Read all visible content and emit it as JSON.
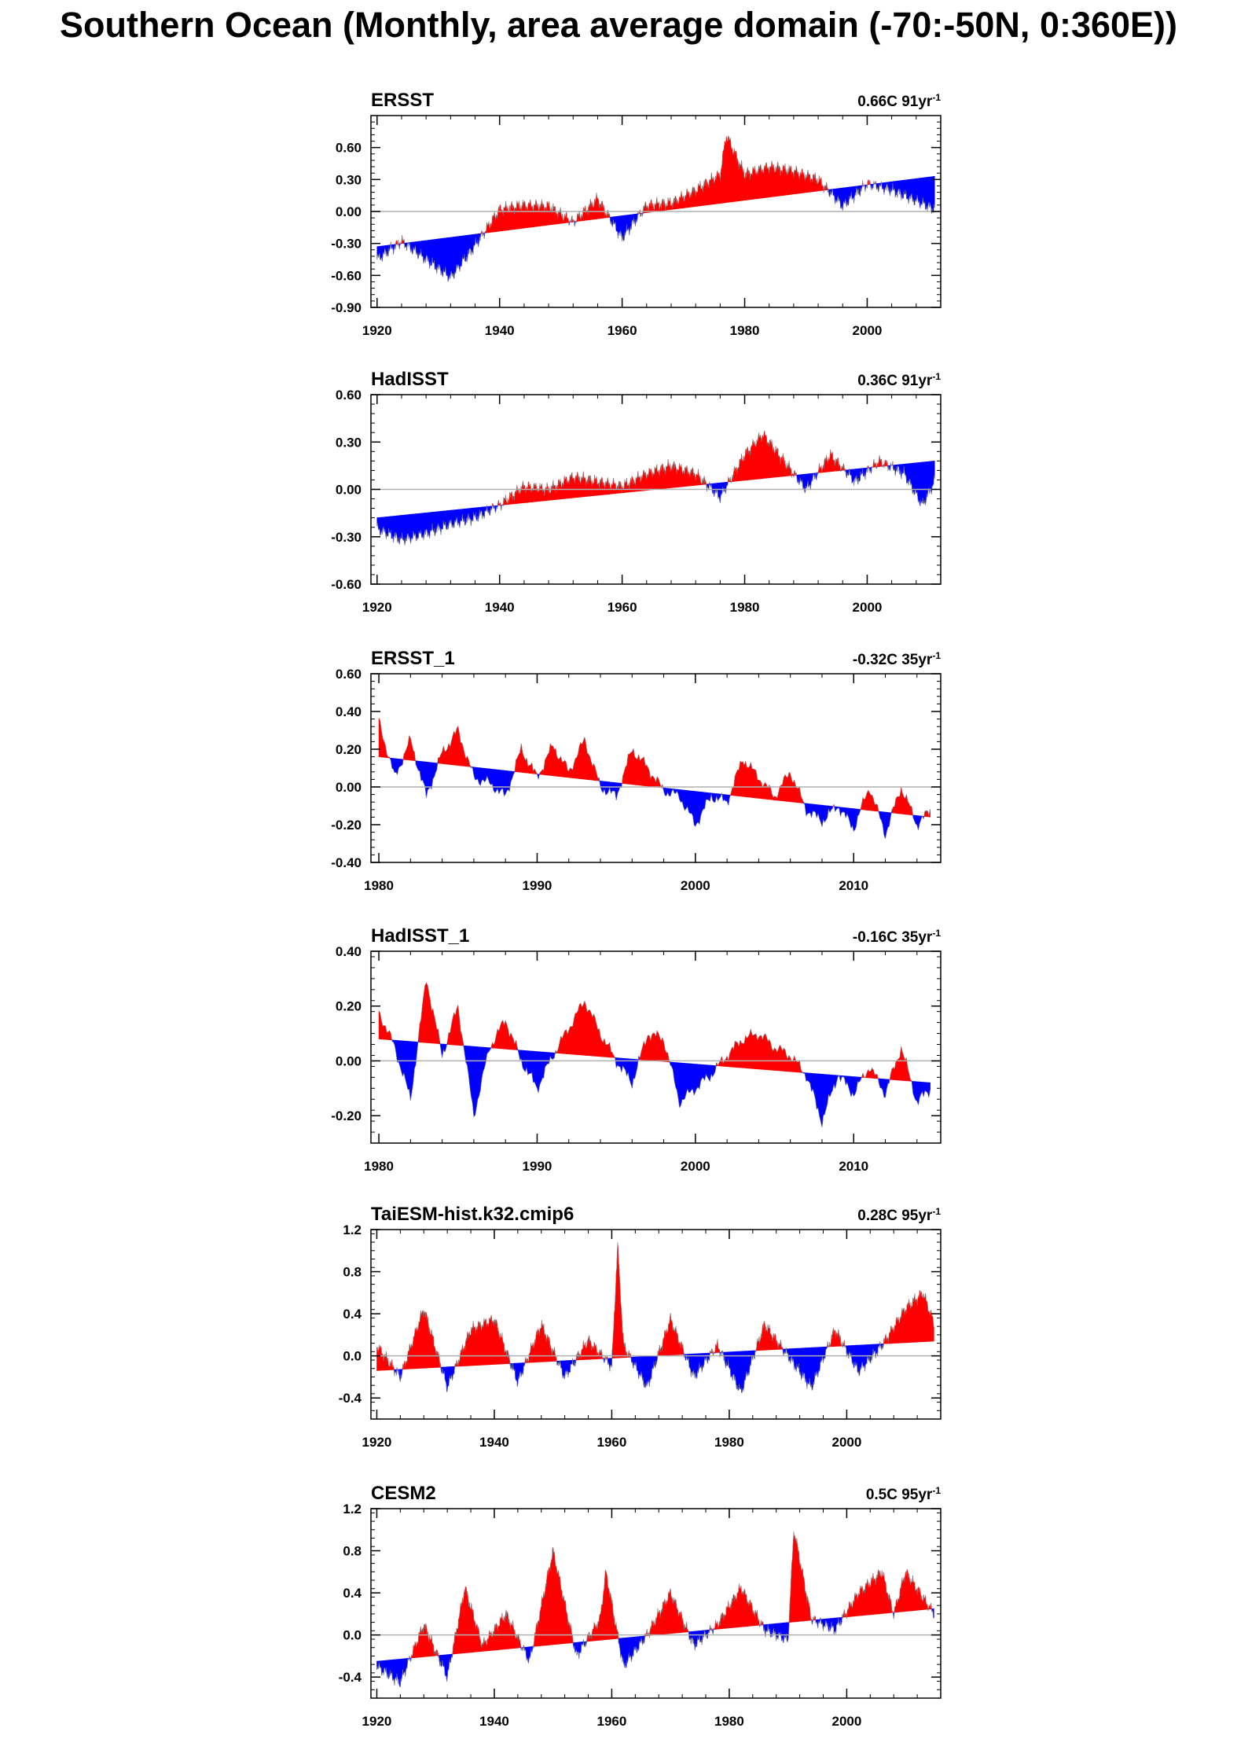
{
  "page_title": "Southern Ocean (Monthly, area average domain (-70:-50N, 0:360E))",
  "colors": {
    "positive": "#ff0000",
    "negative": "#0000ff",
    "zero_line": "#b0b0b0",
    "frame": "#000000"
  },
  "chart_data": [
    {
      "type": "area",
      "title": "ERSST",
      "right_label": "0.66C 91yr",
      "right_label_sup": "-1",
      "xlabel": "",
      "ylabel": "",
      "x_start": 1920,
      "x_end": 2011,
      "xlim": [
        1919,
        2012
      ],
      "ylim": [
        -0.9,
        0.9
      ],
      "yticks": [
        0.6,
        0.3,
        0.0,
        -0.3,
        -0.6,
        -0.9
      ],
      "ytick_labels": [
        "0.60",
        "0.30",
        "0.00",
        "-0.30",
        "-0.60",
        "-0.90"
      ],
      "xticks": [
        1920,
        1940,
        1960,
        1980,
        2000
      ],
      "trend": {
        "start": -0.33,
        "end": 0.33
      },
      "series_x": [
        1920,
        1924,
        1928,
        1932,
        1936,
        1940,
        1944,
        1948,
        1952,
        1956,
        1960,
        1964,
        1968,
        1972,
        1976,
        1977,
        1980,
        1984,
        1988,
        1992,
        1996,
        2000,
        2004,
        2008,
        2011
      ],
      "series_y": [
        -0.45,
        -0.28,
        -0.45,
        -0.62,
        -0.32,
        0.02,
        0.06,
        0.05,
        -0.1,
        0.12,
        -0.25,
        0.06,
        0.08,
        0.2,
        0.35,
        0.72,
        0.35,
        0.42,
        0.38,
        0.3,
        0.05,
        0.26,
        0.2,
        0.1,
        0.02
      ],
      "grid": false
    },
    {
      "type": "area",
      "title": "HadISST",
      "right_label": "0.36C 91yr",
      "right_label_sup": "-1",
      "xlabel": "",
      "ylabel": "",
      "x_start": 1920,
      "x_end": 2011,
      "xlim": [
        1919,
        2012
      ],
      "ylim": [
        -0.6,
        0.6
      ],
      "yticks": [
        0.6,
        0.3,
        0.0,
        -0.3,
        -0.6
      ],
      "ytick_labels": [
        "0.60",
        "0.30",
        "0.00",
        "-0.30",
        "-0.60"
      ],
      "xticks": [
        1920,
        1940,
        1960,
        1980,
        2000
      ],
      "trend": {
        "start": -0.18,
        "end": 0.18
      },
      "series_x": [
        1920,
        1924,
        1928,
        1932,
        1936,
        1940,
        1944,
        1948,
        1952,
        1956,
        1960,
        1964,
        1968,
        1972,
        1976,
        1980,
        1983,
        1986,
        1990,
        1994,
        1998,
        2002,
        2006,
        2009,
        2011
      ],
      "series_y": [
        -0.25,
        -0.32,
        -0.28,
        -0.22,
        -0.18,
        -0.1,
        0.02,
        0.0,
        0.08,
        0.05,
        0.02,
        0.1,
        0.15,
        0.1,
        -0.05,
        0.22,
        0.35,
        0.2,
        0.0,
        0.22,
        0.05,
        0.18,
        0.1,
        -0.1,
        0.05
      ],
      "grid": false
    },
    {
      "type": "area",
      "title": "ERSST_1",
      "right_label": "-0.32C 35yr",
      "right_label_sup": "-1",
      "xlabel": "",
      "ylabel": "",
      "x_start": 1980,
      "x_end": 2014.9,
      "xlim": [
        1979.5,
        2015.5
      ],
      "ylim": [
        -0.4,
        0.6
      ],
      "yticks": [
        0.6,
        0.4,
        0.2,
        0.0,
        -0.2,
        -0.4
      ],
      "ytick_labels": [
        "0.60",
        "0.40",
        "0.20",
        "0.00",
        "-0.20",
        "-0.40"
      ],
      "xticks": [
        1980,
        1990,
        2000,
        2010
      ],
      "trend": {
        "start": 0.16,
        "end": -0.16
      },
      "series_x": [
        1980,
        1981,
        1982,
        1983,
        1984,
        1985,
        1986,
        1987,
        1988,
        1989,
        1990,
        1991,
        1992,
        1993,
        1994,
        1995,
        1996,
        1997,
        1998,
        1999,
        2000,
        2001,
        2002,
        2003,
        2004,
        2005,
        2006,
        2007,
        2008,
        2009,
        2010,
        2011,
        2012,
        2013,
        2014,
        2014.9
      ],
      "series_y": [
        0.35,
        0.05,
        0.25,
        -0.05,
        0.18,
        0.3,
        0.05,
        0.02,
        -0.05,
        0.2,
        0.05,
        0.22,
        0.08,
        0.25,
        0.0,
        -0.05,
        0.2,
        0.1,
        -0.02,
        -0.05,
        -0.2,
        -0.05,
        -0.08,
        0.15,
        0.05,
        -0.05,
        0.08,
        -0.12,
        -0.18,
        -0.1,
        -0.22,
        0.0,
        -0.25,
        0.0,
        -0.2,
        -0.12
      ],
      "grid": false
    },
    {
      "type": "area",
      "title": "HadISST_1",
      "right_label": "-0.16C 35yr",
      "right_label_sup": "-1",
      "xlabel": "",
      "ylabel": "",
      "x_start": 1980,
      "x_end": 2014.9,
      "xlim": [
        1979.5,
        2015.5
      ],
      "ylim": [
        -0.3,
        0.4
      ],
      "yticks": [
        0.4,
        0.2,
        0.0,
        -0.2
      ],
      "ytick_labels": [
        "0.40",
        "0.20",
        "0.00",
        "-0.20"
      ],
      "xticks": [
        1980,
        1990,
        2000,
        2010
      ],
      "trend": {
        "start": 0.08,
        "end": -0.08
      },
      "series_x": [
        1980,
        1981,
        1982,
        1983,
        1984,
        1985,
        1986,
        1987,
        1988,
        1989,
        1990,
        1991,
        1992,
        1993,
        1994,
        1995,
        1996,
        1997,
        1998,
        1999,
        2000,
        2001,
        2002,
        2003,
        2004,
        2005,
        2006,
        2007,
        2008,
        2009,
        2010,
        2011,
        2012,
        2013,
        2014,
        2014.9
      ],
      "series_y": [
        0.18,
        0.05,
        -0.14,
        0.3,
        0.02,
        0.2,
        -0.2,
        0.05,
        0.15,
        0.0,
        -0.1,
        0.02,
        0.12,
        0.22,
        0.1,
        0.0,
        -0.08,
        0.1,
        0.08,
        -0.15,
        -0.1,
        -0.05,
        0.02,
        0.08,
        0.1,
        0.05,
        0.02,
        -0.05,
        -0.22,
        -0.05,
        -0.12,
        -0.02,
        -0.12,
        0.05,
        -0.15,
        -0.1
      ],
      "grid": false
    },
    {
      "type": "area",
      "title": "TaiESM-hist.k32.cmip6",
      "right_label": "0.28C 95yr",
      "right_label_sup": "-1",
      "xlabel": "",
      "ylabel": "",
      "x_start": 1920,
      "x_end": 2014.9,
      "xlim": [
        1919,
        2016
      ],
      "ylim": [
        -0.6,
        1.2
      ],
      "yticks": [
        1.2,
        0.8,
        0.4,
        0.0,
        -0.4
      ],
      "ytick_labels": [
        "1.2",
        "0.8",
        "0.4",
        "0.0",
        "-0.4"
      ],
      "xticks": [
        1920,
        1940,
        1960,
        1980,
        2000
      ],
      "trend": {
        "start": -0.14,
        "end": 0.14
      },
      "series_x": [
        1920,
        1924,
        1928,
        1932,
        1936,
        1940,
        1944,
        1948,
        1952,
        1956,
        1960,
        1961,
        1962,
        1966,
        1970,
        1974,
        1978,
        1982,
        1986,
        1990,
        1994,
        1998,
        2002,
        2006,
        2010,
        2013,
        2014.9
      ],
      "series_y": [
        0.1,
        -0.2,
        0.45,
        -0.3,
        0.25,
        0.35,
        -0.25,
        0.3,
        -0.2,
        0.15,
        -0.1,
        1.05,
        0.1,
        -0.3,
        0.35,
        -0.2,
        0.1,
        -0.35,
        0.3,
        0.0,
        -0.3,
        0.25,
        -0.15,
        0.1,
        0.45,
        0.6,
        0.3
      ],
      "grid": false
    },
    {
      "type": "area",
      "title": "CESM2",
      "right_label": "0.5C 95yr",
      "right_label_sup": "-1",
      "xlabel": "",
      "ylabel": "",
      "x_start": 1920,
      "x_end": 2014.9,
      "xlim": [
        1919,
        2016
      ],
      "ylim": [
        -0.6,
        1.2
      ],
      "yticks": [
        1.2,
        0.8,
        0.4,
        0.0,
        -0.4
      ],
      "ytick_labels": [
        "1.2",
        "0.8",
        "0.4",
        "0.0",
        "-0.4"
      ],
      "xticks": [
        1920,
        1940,
        1960,
        1980,
        2000
      ],
      "trend": {
        "start": -0.25,
        "end": 0.25
      },
      "series_x": [
        1920,
        1924,
        1928,
        1932,
        1935,
        1938,
        1942,
        1946,
        1950,
        1954,
        1958,
        1959,
        1962,
        1966,
        1970,
        1974,
        1978,
        1982,
        1986,
        1990,
        1991,
        1994,
        1998,
        2002,
        2006,
        2008,
        2010,
        2014.9
      ],
      "series_y": [
        -0.3,
        -0.45,
        0.1,
        -0.4,
        0.45,
        -0.1,
        0.2,
        -0.25,
        0.8,
        -0.2,
        0.15,
        0.6,
        -0.3,
        0.0,
        0.4,
        -0.1,
        0.1,
        0.45,
        0.05,
        -0.05,
        1.0,
        0.15,
        0.05,
        0.4,
        0.6,
        0.2,
        0.6,
        0.2
      ],
      "grid": false
    }
  ]
}
